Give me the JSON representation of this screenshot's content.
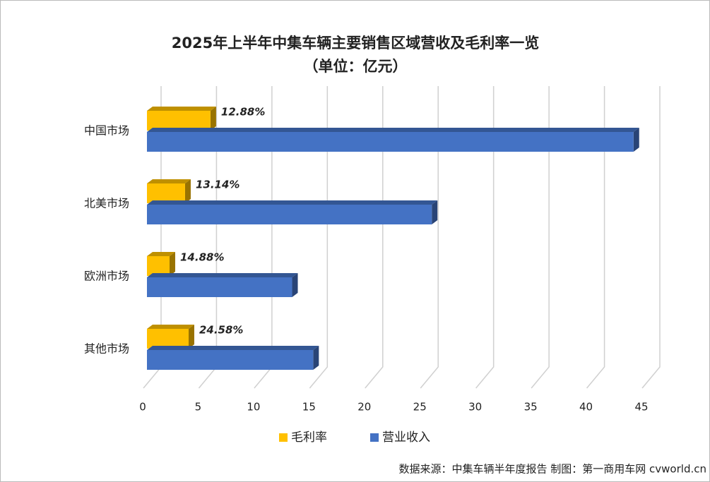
{
  "chart_data": {
    "type": "bar3d-horizontal",
    "title": "2025年上半年中集车辆主要销售区域营收及毛利率一览",
    "subtitle": "（单位：亿元）",
    "categories": [
      "中国市场",
      "北美市场",
      "欧洲市场",
      "其他市场"
    ],
    "series": [
      {
        "name": "毛利率",
        "color": "#ffc000",
        "values": [
          5.73,
          3.44,
          2.04,
          3.76
        ],
        "data_labels": [
          "12.88%",
          "13.14%",
          "14.88%",
          "24.58%"
        ]
      },
      {
        "name": "营业收入",
        "color": "#4472c4",
        "values": [
          43.9,
          25.7,
          13.1,
          15.0
        ]
      }
    ],
    "xlim": [
      0,
      45
    ],
    "xticks": [
      0,
      5,
      10,
      15,
      20,
      25,
      30,
      35,
      40,
      45
    ],
    "grid": true,
    "source": "数据来源：中集车辆半年度报告 制图：第一商用车网 cvworld.cn"
  }
}
